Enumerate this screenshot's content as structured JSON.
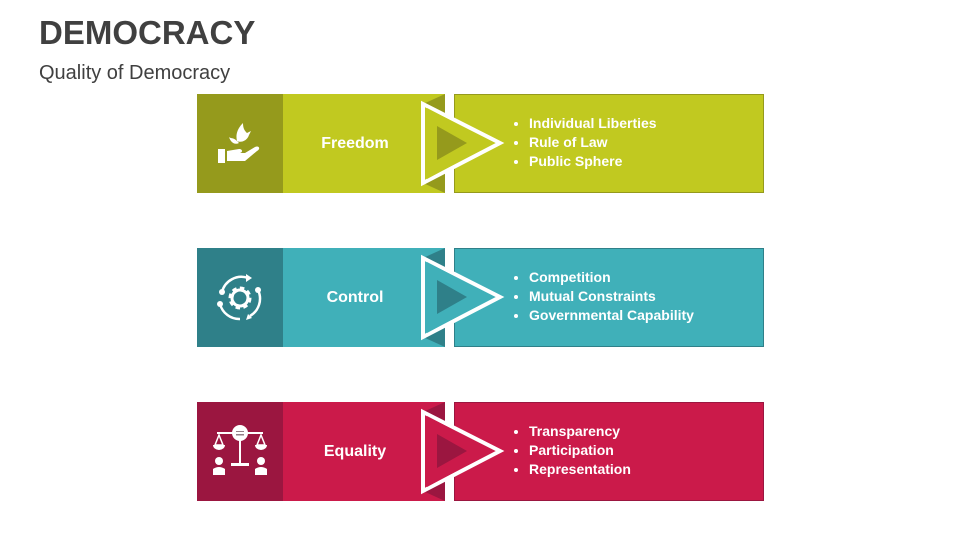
{
  "title": "DEMOCRACY",
  "subtitle": "Quality of Democracy",
  "rows": [
    {
      "label": "Freedom",
      "icon": "hand-dove-icon",
      "color": "#c1c920",
      "dark": "#959a1c",
      "items": [
        "Individual Liberties",
        "Rule of Law",
        "Public Sphere"
      ]
    },
    {
      "label": "Control",
      "icon": "gear-cycle-icon",
      "color": "#40b0b9",
      "dark": "#2f8089",
      "items": [
        "Competition",
        "Mutual Constraints",
        "Governmental Capability"
      ]
    },
    {
      "label": "Equality",
      "icon": "scales-people-icon",
      "color": "#cb1a4a",
      "dark": "#9b1640",
      "items": [
        "Transparency",
        "Participation",
        "Representation"
      ]
    }
  ]
}
